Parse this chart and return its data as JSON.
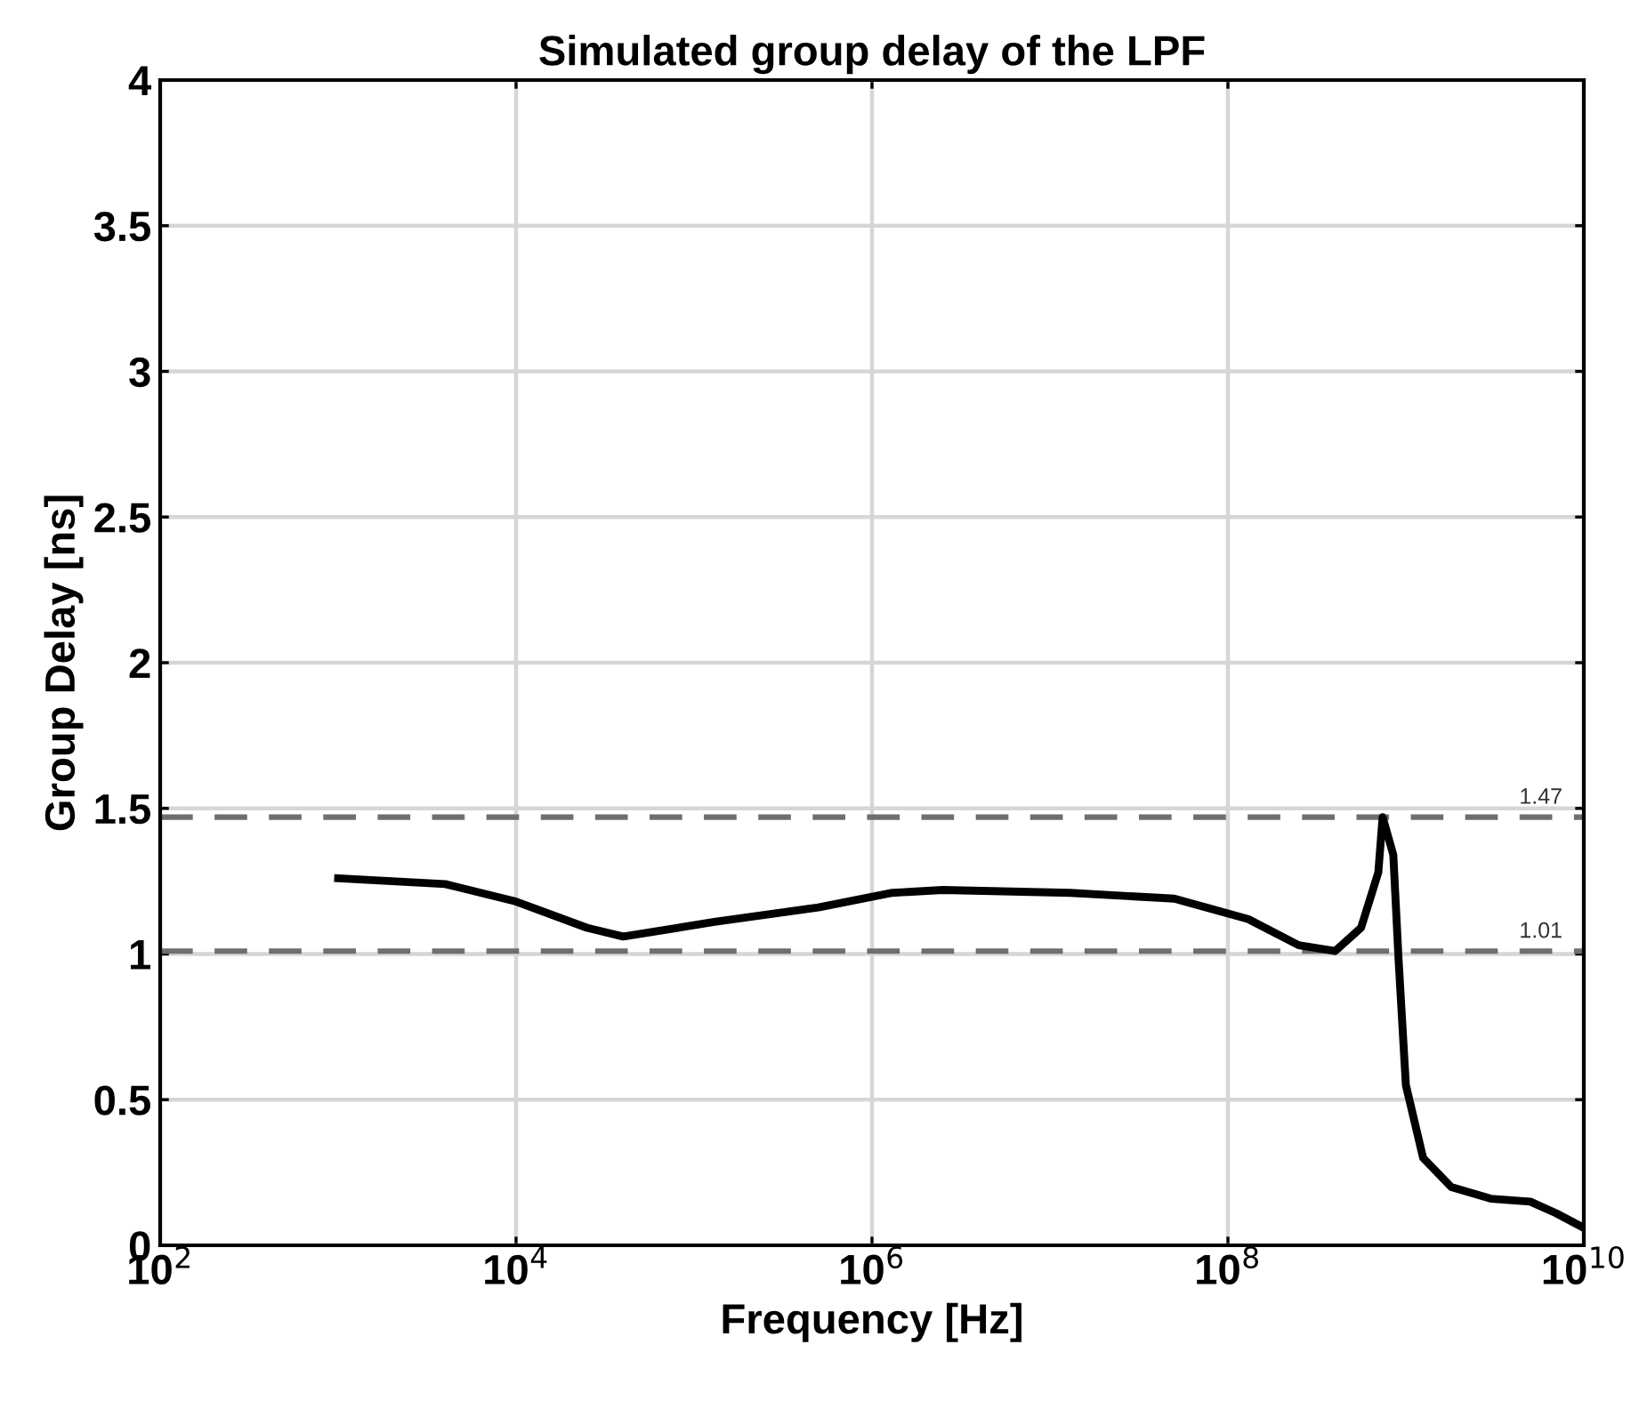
{
  "chart_data": {
    "type": "line",
    "title": "Simulated group delay of the LPF",
    "xlabel": "Frequency [Hz]",
    "ylabel": "Group Delay [ns]",
    "log": "x",
    "grid": true,
    "line_style": "solid",
    "marker": "none",
    "xlim": [
      100,
      10000000000
    ],
    "xticks": [
      {
        "value": 100,
        "label": "10$^{2}$"
      },
      {
        "value": 10000,
        "label": "10$^{4}$"
      },
      {
        "value": 1000000,
        "label": "10$^{6}$"
      },
      {
        "value": 100000000,
        "label": "10$^{8}$"
      },
      {
        "value": 10000000000,
        "label": "10$^{10}$"
      }
    ],
    "ylim": [
      0,
      4
    ],
    "yticks": [
      0,
      0.5,
      1,
      1.5,
      2,
      2.5,
      3,
      3.5,
      4
    ],
    "series": [
      {
        "color": "#000000",
        "x": [
          1000,
          4000,
          10000,
          25000,
          40000,
          130000,
          500000,
          1300000,
          2500000,
          13000000,
          50000000,
          130000000,
          250000000,
          400000000,
          560000000,
          700000000,
          740000000,
          850000000,
          910000000,
          1000000000,
          1250000000,
          1800000000,
          3000000000,
          5000000000,
          7000000000,
          10000000000
        ],
        "values": [
          1.26,
          1.24,
          1.18,
          1.09,
          1.06,
          1.11,
          1.16,
          1.21,
          1.22,
          1.21,
          1.19,
          1.12,
          1.03,
          1.01,
          1.09,
          1.28,
          1.47,
          1.34,
          0.98,
          0.55,
          0.3,
          0.2,
          0.16,
          0.15,
          0.11,
          0.06
        ]
      }
    ],
    "ref_lines": [
      {
        "axis": "y",
        "value": 1.47,
        "label": "1.47",
        "color": "#6e6e6e",
        "line_style": "dashed"
      },
      {
        "axis": "y",
        "value": 1.01,
        "label": "1.01",
        "color": "#6e6e6e",
        "line_style": "dashed"
      }
    ]
  }
}
